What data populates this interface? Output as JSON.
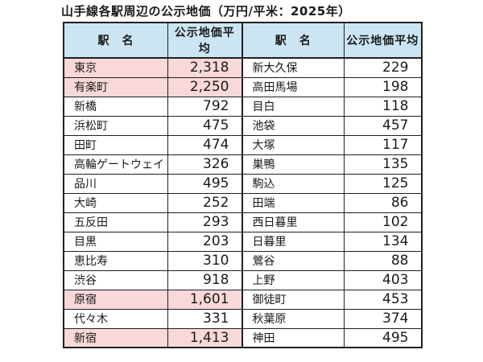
{
  "title": "山手線各駅周辺の公示地価（万円/平米：2025年）",
  "chart_data": {
    "type": "table",
    "title": "山手線各駅周辺の公示地価（万円/平米：2025年）",
    "unit": "万円/平米",
    "year": "2025年",
    "columns": [
      "駅　名",
      "公示地価平均",
      "駅　名",
      "公示地価平均"
    ],
    "rows": [
      {
        "left": {
          "station": "東京",
          "price": "2,318",
          "highlight": true
        },
        "right": {
          "station": "新大久保",
          "price": "229",
          "highlight": false
        }
      },
      {
        "left": {
          "station": "有楽町",
          "price": "2,250",
          "highlight": true
        },
        "right": {
          "station": "高田馬場",
          "price": "198",
          "highlight": false
        }
      },
      {
        "left": {
          "station": "新橋",
          "price": "792",
          "highlight": false
        },
        "right": {
          "station": "目白",
          "price": "118",
          "highlight": false
        }
      },
      {
        "left": {
          "station": "浜松町",
          "price": "475",
          "highlight": false
        },
        "right": {
          "station": "池袋",
          "price": "457",
          "highlight": false
        }
      },
      {
        "left": {
          "station": "田町",
          "price": "474",
          "highlight": false
        },
        "right": {
          "station": "大塚",
          "price": "117",
          "highlight": false
        }
      },
      {
        "left": {
          "station": "高輪ゲートウェイ",
          "price": "326",
          "highlight": false
        },
        "right": {
          "station": "巣鴨",
          "price": "135",
          "highlight": false
        }
      },
      {
        "left": {
          "station": "品川",
          "price": "495",
          "highlight": false
        },
        "right": {
          "station": "駒込",
          "price": "125",
          "highlight": false
        }
      },
      {
        "left": {
          "station": "大崎",
          "price": "252",
          "highlight": false
        },
        "right": {
          "station": "田端",
          "price": "86",
          "highlight": false
        }
      },
      {
        "left": {
          "station": "五反田",
          "price": "293",
          "highlight": false
        },
        "right": {
          "station": "西日暮里",
          "price": "102",
          "highlight": false
        }
      },
      {
        "left": {
          "station": "目黒",
          "price": "203",
          "highlight": false
        },
        "right": {
          "station": "日暮里",
          "price": "134",
          "highlight": false
        }
      },
      {
        "left": {
          "station": "恵比寿",
          "price": "310",
          "highlight": false
        },
        "right": {
          "station": "鶯谷",
          "price": "88",
          "highlight": false
        }
      },
      {
        "left": {
          "station": "渋谷",
          "price": "918",
          "highlight": false
        },
        "right": {
          "station": "上野",
          "price": "403",
          "highlight": false
        }
      },
      {
        "left": {
          "station": "原宿",
          "price": "1,601",
          "highlight": true
        },
        "right": {
          "station": "御徒町",
          "price": "453",
          "highlight": false
        }
      },
      {
        "left": {
          "station": "代々木",
          "price": "331",
          "highlight": false
        },
        "right": {
          "station": "秋葉原",
          "price": "374",
          "highlight": false
        }
      },
      {
        "left": {
          "station": "新宿",
          "price": "1,413",
          "highlight": true
        },
        "right": {
          "station": "神田",
          "price": "495",
          "highlight": false
        }
      }
    ]
  },
  "colors": {
    "header_bg": "#cbe5f3",
    "highlight_bg": "#f8d8d8",
    "border": "#1f1f1f",
    "row_bg": "#ffffff",
    "text": "#1a1a1a"
  }
}
